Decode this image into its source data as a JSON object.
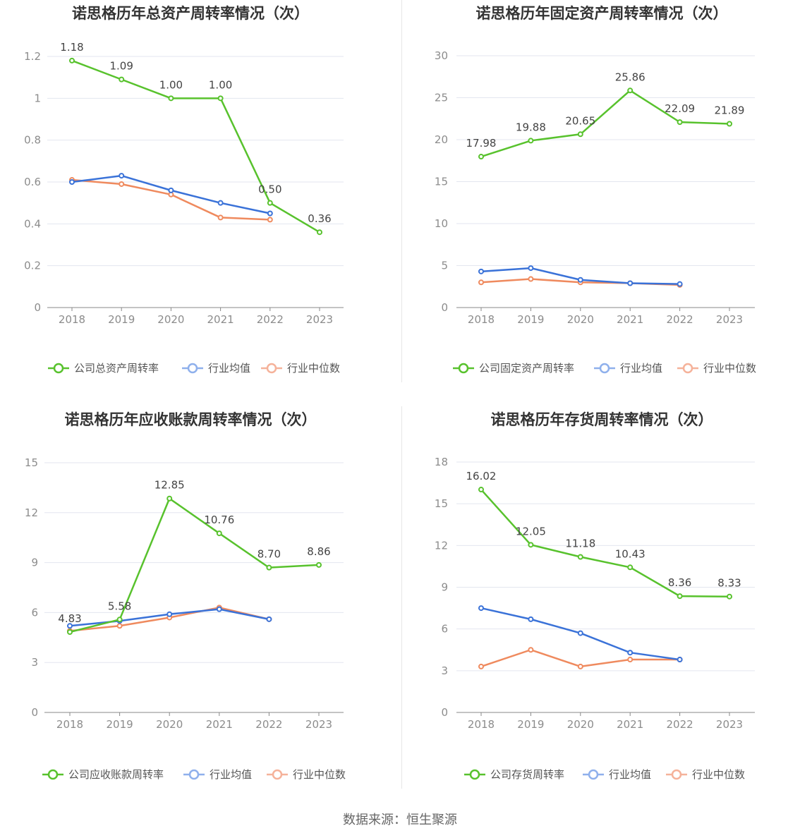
{
  "source": "数据来源：恒生聚源",
  "colors": {
    "company": "#58c22d",
    "avg": "#3a72d8",
    "median": "#ef8a5e",
    "legend_avg": "#8fb0ec",
    "legend_median": "#f5b29a"
  },
  "chart_data": [
    {
      "type": "line",
      "title": "诺思格历年总资产周转率情况（次）",
      "categories": [
        "2018",
        "2019",
        "2020",
        "2021",
        "2022",
        "2023"
      ],
      "ylim": [
        0,
        1.2
      ],
      "yticks": [
        "0",
        "0.2",
        "0.4",
        "0.6",
        "0.8",
        "1",
        "1.2"
      ],
      "ytick_values": [
        0,
        0.2,
        0.4,
        0.6,
        0.8,
        1,
        1.2
      ],
      "series": [
        {
          "name": "公司总资产周转率",
          "values": [
            1.18,
            1.09,
            1.0,
            1.0,
            0.5,
            0.36
          ],
          "labels": [
            "1.18",
            "1.09",
            "1.00",
            "1.00",
            "0.50",
            "0.36"
          ]
        },
        {
          "name": "行业均值",
          "values": [
            0.6,
            0.63,
            0.56,
            0.5,
            0.45,
            null
          ]
        },
        {
          "name": "行业中位数",
          "values": [
            0.61,
            0.59,
            0.54,
            0.43,
            0.42,
            null
          ]
        }
      ],
      "legend": "bottom"
    },
    {
      "type": "line",
      "title": "诺思格历年固定资产周转率情况（次）",
      "categories": [
        "2018",
        "2019",
        "2020",
        "2021",
        "2022",
        "2023"
      ],
      "ylim": [
        0,
        30
      ],
      "yticks": [
        "0",
        "5",
        "10",
        "15",
        "20",
        "25",
        "30"
      ],
      "ytick_values": [
        0,
        5,
        10,
        15,
        20,
        25,
        30
      ],
      "series": [
        {
          "name": "公司固定资产周转率",
          "values": [
            17.98,
            19.88,
            20.65,
            25.86,
            22.09,
            21.89
          ],
          "labels": [
            "17.98",
            "19.88",
            "20.65",
            "25.86",
            "22.09",
            "21.89"
          ]
        },
        {
          "name": "行业均值",
          "values": [
            4.3,
            4.7,
            3.3,
            2.9,
            2.8,
            null
          ]
        },
        {
          "name": "行业中位数",
          "values": [
            3.0,
            3.4,
            3.0,
            2.9,
            2.7,
            null
          ]
        }
      ],
      "legend": "bottom"
    },
    {
      "type": "line",
      "title": "诺思格历年应收账款周转率情况（次）",
      "categories": [
        "2018",
        "2019",
        "2020",
        "2021",
        "2022",
        "2023"
      ],
      "ylim": [
        0,
        15
      ],
      "yticks": [
        "0",
        "3",
        "6",
        "9",
        "12",
        "15"
      ],
      "ytick_values": [
        0,
        3,
        6,
        9,
        12,
        15
      ],
      "series": [
        {
          "name": "公司应收账款周转率",
          "values": [
            4.83,
            5.58,
            12.85,
            10.76,
            8.7,
            8.86
          ],
          "labels": [
            "4.83",
            "5.58",
            "12.85",
            "10.76",
            "8.70",
            "8.86"
          ]
        },
        {
          "name": "行业均值",
          "values": [
            5.2,
            5.5,
            5.9,
            6.2,
            5.6,
            null
          ]
        },
        {
          "name": "行业中位数",
          "values": [
            4.9,
            5.2,
            5.7,
            6.3,
            5.6,
            null
          ]
        }
      ],
      "legend": "bottom"
    },
    {
      "type": "line",
      "title": "诺思格历年存货周转率情况（次）",
      "categories": [
        "2018",
        "2019",
        "2020",
        "2021",
        "2022",
        "2023"
      ],
      "ylim": [
        0,
        18
      ],
      "yticks": [
        "0",
        "3",
        "6",
        "9",
        "12",
        "15",
        "18"
      ],
      "ytick_values": [
        0,
        3,
        6,
        9,
        12,
        15,
        18
      ],
      "series": [
        {
          "name": "公司存货周转率",
          "values": [
            16.02,
            12.05,
            11.18,
            10.43,
            8.36,
            8.33
          ],
          "labels": [
            "16.02",
            "12.05",
            "11.18",
            "10.43",
            "8.36",
            "8.33"
          ]
        },
        {
          "name": "行业均值",
          "values": [
            7.5,
            6.7,
            5.7,
            4.3,
            3.8,
            null
          ]
        },
        {
          "name": "行业中位数",
          "values": [
            3.3,
            4.5,
            3.3,
            3.8,
            3.8,
            null
          ]
        }
      ],
      "legend": "bottom"
    }
  ]
}
